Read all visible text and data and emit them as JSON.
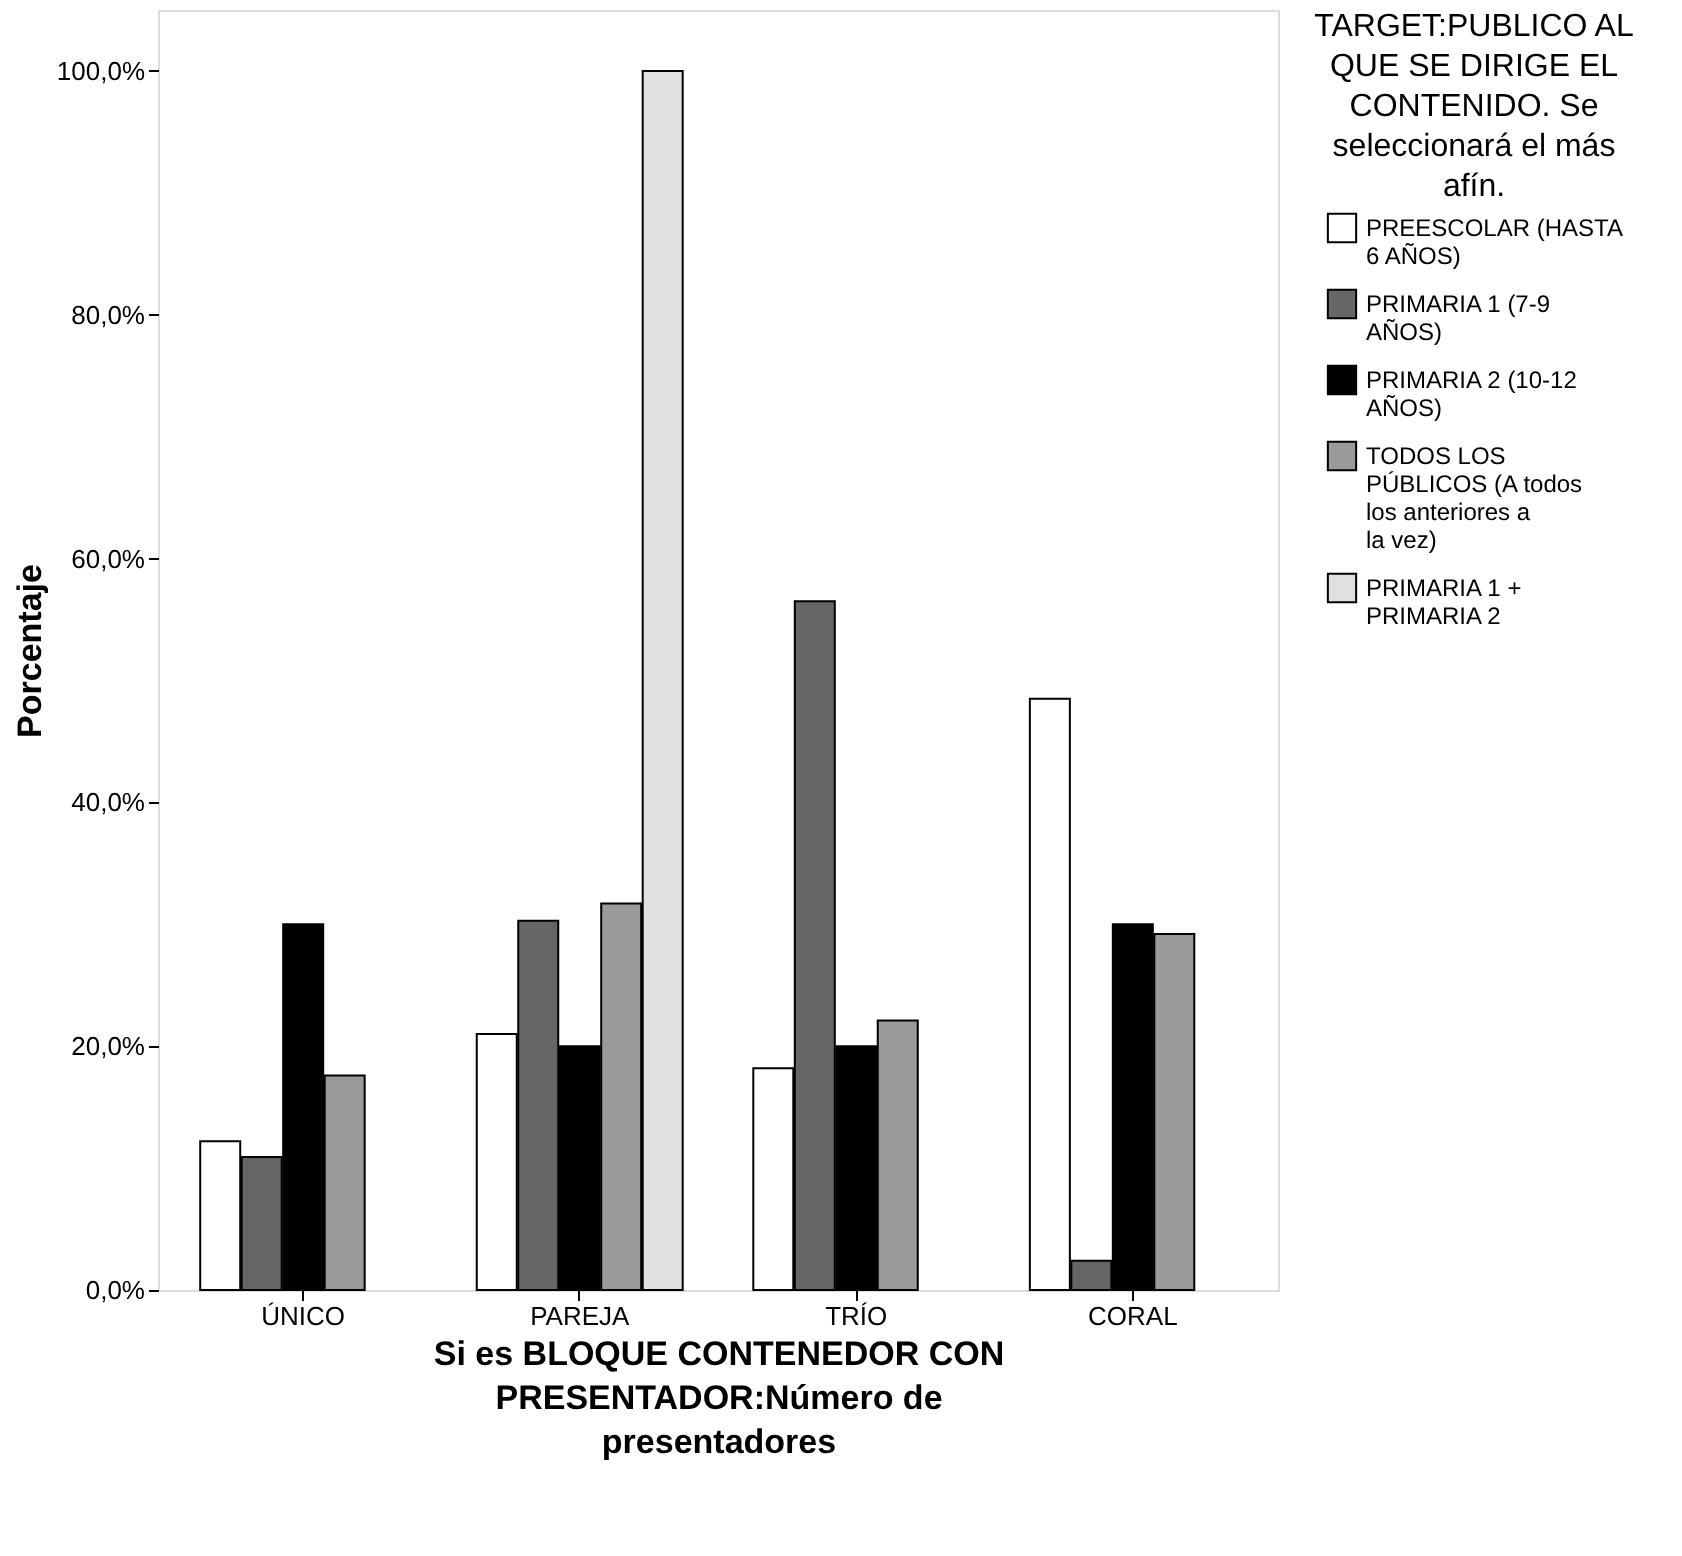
{
  "chart_data": {
    "type": "bar",
    "xlabel": "Si es BLOQUE CONTENEDOR CON PRESENTADOR:Número de presentadores",
    "ylabel": "Porcentaje",
    "legend_title": "TARGET:PUBLICO AL QUE SE DIRIGE EL CONTENIDO. Se seleccionará el más afín.",
    "categories": [
      "ÚNICO",
      "PAREJA",
      "TRÍO",
      "CORAL"
    ],
    "series": [
      {
        "name": "PREESCOLAR (HASTA  6 AÑOS)",
        "color": "#ffffff",
        "values": [
          12.2,
          21.0,
          18.2,
          48.5
        ]
      },
      {
        "name": "PRIMARIA 1 (7-9 AÑOS)",
        "color": "#666666",
        "values": [
          10.9,
          30.3,
          56.5,
          2.4
        ]
      },
      {
        "name": "PRIMARIA 2 (10-12 AÑOS)",
        "color": "#000000",
        "values": [
          30.0,
          20.0,
          20.0,
          30.0
        ]
      },
      {
        "name": "TODOS LOS PÚBLICOS (A todos los anteriores a la vez)",
        "color": "#9a9a9a",
        "values": [
          17.6,
          31.7,
          22.1,
          29.2
        ]
      },
      {
        "name": "PRIMARIA 1 + PRIMARIA 2",
        "color": "#e0e0e0",
        "values": [
          null,
          100.0,
          null,
          null
        ]
      }
    ],
    "ylim": [
      0,
      105
    ],
    "yticks": [
      {
        "value": 0,
        "label": "0,0%"
      },
      {
        "value": 20,
        "label": "20,0%"
      },
      {
        "value": 40,
        "label": "40,0%"
      },
      {
        "value": 60,
        "label": "60,0%"
      },
      {
        "value": 80,
        "label": "80,0%"
      },
      {
        "value": 100,
        "label": "100,0%"
      }
    ],
    "grid": false,
    "legend": "right"
  }
}
